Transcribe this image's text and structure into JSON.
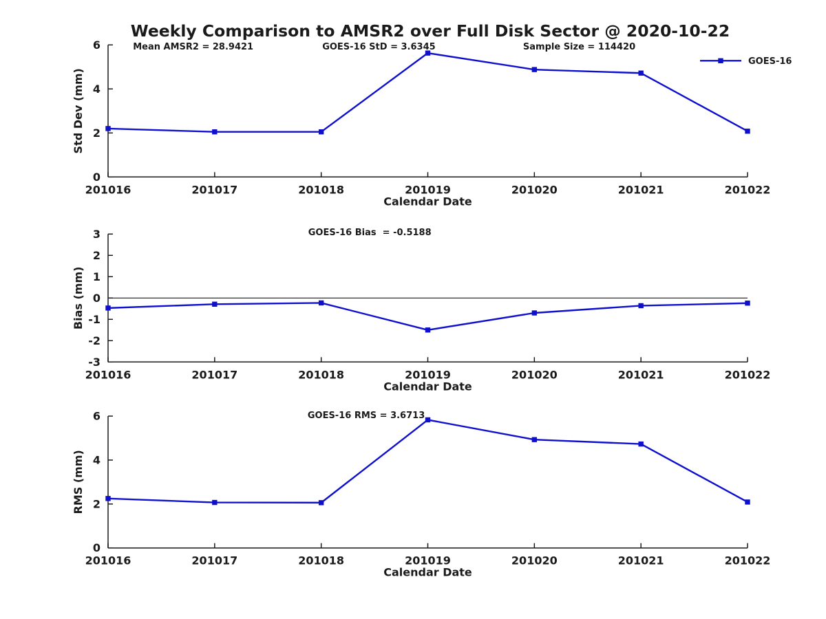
{
  "title": "Weekly Comparison to AMSR2 over Full Disk Sector @ 2020-10-22",
  "colors": {
    "line": "#0f0fce",
    "marker": "#0f0fce",
    "axis": "#1a1a1a",
    "text": "#1a1a1a",
    "background": "#ffffff"
  },
  "chart_data": [
    {
      "id": "std-dev-panel",
      "type": "line",
      "categories": [
        "201016",
        "201017",
        "201018",
        "201019",
        "201020",
        "201021",
        "201022"
      ],
      "series": [
        {
          "name": "GOES-16",
          "values": [
            2.2,
            2.05,
            2.05,
            5.63,
            4.88,
            4.72,
            2.08
          ]
        }
      ],
      "xlabel": "Calendar Date",
      "ylabel": "Std Dev (mm)",
      "ylim": [
        0,
        6
      ],
      "yticks": [
        0,
        2,
        4,
        6
      ],
      "grid": false,
      "zero_line": false,
      "annotations": [
        {
          "text": "Mean AMSR2 = 28.9421",
          "x": 0.039
        },
        {
          "text": "GOES-16 StD = 3.6345",
          "x": 0.335
        },
        {
          "text": "Sample Size = 114420",
          "x": 0.649
        }
      ],
      "legend": {
        "label": "GOES-16",
        "position": "top-right"
      }
    },
    {
      "id": "bias-panel",
      "type": "line",
      "categories": [
        "201016",
        "201017",
        "201018",
        "201019",
        "201020",
        "201021",
        "201022"
      ],
      "series": [
        {
          "name": "GOES-16",
          "values": [
            -0.47,
            -0.29,
            -0.23,
            -1.5,
            -0.7,
            -0.36,
            -0.24
          ]
        }
      ],
      "xlabel": "Calendar Date",
      "ylabel": "Bias (mm)",
      "ylim": [
        -3,
        3
      ],
      "yticks": [
        -3,
        -2,
        -1,
        0,
        1,
        2,
        3
      ],
      "grid": false,
      "zero_line": true,
      "annotations": [
        {
          "text": "GOES-16 Bias  = -0.5188",
          "x": 0.313
        }
      ],
      "legend": null
    },
    {
      "id": "rms-panel",
      "type": "line",
      "categories": [
        "201016",
        "201017",
        "201018",
        "201019",
        "201020",
        "201021",
        "201022"
      ],
      "series": [
        {
          "name": "GOES-16",
          "values": [
            2.25,
            2.07,
            2.06,
            5.83,
            4.93,
            4.73,
            2.09
          ]
        }
      ],
      "xlabel": "Calendar Date",
      "ylabel": "RMS (mm)",
      "ylim": [
        0,
        6
      ],
      "yticks": [
        0,
        2,
        4,
        6
      ],
      "grid": false,
      "zero_line": false,
      "annotations": [
        {
          "text": "GOES-16 RMS = 3.6713",
          "x": 0.312
        }
      ],
      "legend": null
    }
  ]
}
